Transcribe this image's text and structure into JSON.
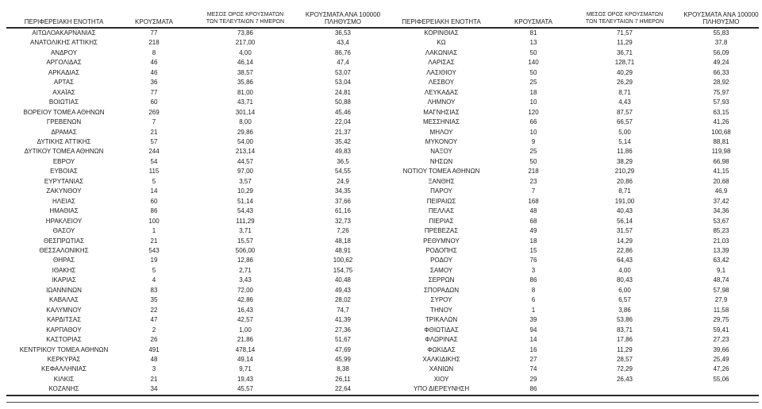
{
  "table": {
    "headers": {
      "region": "ΠΕΡΙΦΕΡΕΙΑΚΗ ΕΝΟΤΗΤΑ",
      "cases": "ΚΡΟΥΣΜΑΤΑ",
      "avg7_line1": "ΜΕΣΟΣ ΟΡΟΣ ΚΡΟΥΣΜΑΤΩΝ",
      "avg7_line2": "ΤΩΝ ΤΕΛΕΥΤΑΙΩΝ 7 ΗΜΕΡΩΝ",
      "per100k_line1": "ΚΡΟΥΣΜΑΤΑ ΑΝΑ 100000",
      "per100k_line2": "ΠΛΗΘΥΣΜΟ"
    },
    "rows_left": [
      {
        "region": "ΑΙΤΩΛΟΑΚΑΡΝΑΝΙΑΣ",
        "cases": "77",
        "avg7": "73,86",
        "per100k": "36,53"
      },
      {
        "region": "ΑΝΑΤΟΛΙΚΗΣ ΑΤΤΙΚΗΣ",
        "cases": "218",
        "avg7": "217,00",
        "per100k": "43,4"
      },
      {
        "region": "ΑΝΔΡΟΥ",
        "cases": "8",
        "avg7": "4,00",
        "per100k": "86,76"
      },
      {
        "region": "ΑΡΓΟΛΙΔΑΣ",
        "cases": "46",
        "avg7": "46,14",
        "per100k": "47,4"
      },
      {
        "region": "ΑΡΚΑΔΙΑΣ",
        "cases": "46",
        "avg7": "38,57",
        "per100k": "53,07"
      },
      {
        "region": "ΑΡΤΑΣ",
        "cases": "36",
        "avg7": "35,86",
        "per100k": "53,04"
      },
      {
        "region": "ΑΧΑΪΑΣ",
        "cases": "77",
        "avg7": "81,00",
        "per100k": "24,81"
      },
      {
        "region": "ΒΟΙΩΤΙΑΣ",
        "cases": "60",
        "avg7": "43,71",
        "per100k": "50,88"
      },
      {
        "region": "ΒΟΡΕΙΟΥ ΤΟΜΕΑ ΑΘΗΝΩΝ",
        "cases": "269",
        "avg7": "301,14",
        "per100k": "45,46"
      },
      {
        "region": "ΓΡΕΒΕΝΩΝ",
        "cases": "7",
        "avg7": "8,00",
        "per100k": "22,04"
      },
      {
        "region": "ΔΡΑΜΑΣ",
        "cases": "21",
        "avg7": "29,86",
        "per100k": "21,37"
      },
      {
        "region": "ΔΥΤΙΚΗΣ ΑΤΤΙΚΗΣ",
        "cases": "57",
        "avg7": "54,00",
        "per100k": "35,42"
      },
      {
        "region": "ΔΥΤΙΚΟΥ ΤΟΜΕΑ ΑΘΗΝΩΝ",
        "cases": "244",
        "avg7": "213,14",
        "per100k": "49,83"
      },
      {
        "region": "ΕΒΡΟΥ",
        "cases": "54",
        "avg7": "44,57",
        "per100k": "36,5"
      },
      {
        "region": "ΕΥΒΟΙΑΣ",
        "cases": "115",
        "avg7": "97,00",
        "per100k": "54,55"
      },
      {
        "region": "ΕΥΡΥΤΑΝΙΑΣ",
        "cases": "5",
        "avg7": "3,57",
        "per100k": "24,9"
      },
      {
        "region": "ΖΑΚΥΝΘΟΥ",
        "cases": "14",
        "avg7": "10,29",
        "per100k": "34,35"
      },
      {
        "region": "ΗΛΕΙΑΣ",
        "cases": "60",
        "avg7": "51,14",
        "per100k": "37,66"
      },
      {
        "region": "ΗΜΑΘΙΑΣ",
        "cases": "86",
        "avg7": "54,43",
        "per100k": "61,16"
      },
      {
        "region": "ΗΡΑΚΛΕΙΟΥ",
        "cases": "100",
        "avg7": "111,29",
        "per100k": "32,73"
      },
      {
        "region": "ΘΑΣΟΥ",
        "cases": "1",
        "avg7": "3,71",
        "per100k": "7,26"
      },
      {
        "region": "ΘΕΣΠΡΩΤΙΑΣ",
        "cases": "21",
        "avg7": "15,57",
        "per100k": "48,18"
      },
      {
        "region": "ΘΕΣΣΑΛΟΝΙΚΗΣ",
        "cases": "543",
        "avg7": "506,00",
        "per100k": "48,91"
      },
      {
        "region": "ΘΗΡΑΣ",
        "cases": "19",
        "avg7": "12,86",
        "per100k": "100,62"
      },
      {
        "region": "ΙΘΑΚΗΣ",
        "cases": "5",
        "avg7": "2,71",
        "per100k": "154,75"
      },
      {
        "region": "ΙΚΑΡΙΑΣ",
        "cases": "4",
        "avg7": "3,43",
        "per100k": "40,48"
      },
      {
        "region": "ΙΩΑΝΝΙΝΩΝ",
        "cases": "83",
        "avg7": "72,00",
        "per100k": "49,43"
      },
      {
        "region": "ΚΑΒΑΛΑΣ",
        "cases": "35",
        "avg7": "42,86",
        "per100k": "28,02"
      },
      {
        "region": "ΚΑΛΥΜΝΟΥ",
        "cases": "22",
        "avg7": "16,43",
        "per100k": "74,7"
      },
      {
        "region": "ΚΑΡΔΙΤΣΑΣ",
        "cases": "47",
        "avg7": "42,57",
        "per100k": "41,39"
      },
      {
        "region": "ΚΑΡΠΑΘΟΥ",
        "cases": "2",
        "avg7": "1,00",
        "per100k": "27,36"
      },
      {
        "region": "ΚΑΣΤΟΡΙΑΣ",
        "cases": "26",
        "avg7": "21,86",
        "per100k": "51,67"
      },
      {
        "region": "ΚΕΝΤΡΙΚΟΥ ΤΟΜΕΑ ΑΘΗΝΩΝ",
        "cases": "491",
        "avg7": "478,14",
        "per100k": "47,69"
      },
      {
        "region": "ΚΕΡΚΥΡΑΣ",
        "cases": "48",
        "avg7": "49,14",
        "per100k": "45,99"
      },
      {
        "region": "ΚΕΦΑΛΛΗΝΙΑΣ",
        "cases": "3",
        "avg7": "9,71",
        "per100k": "8,38"
      },
      {
        "region": "ΚΙΛΚΙΣ",
        "cases": "21",
        "avg7": "19,43",
        "per100k": "26,11"
      },
      {
        "region": "ΚΟΖΑΝΗΣ",
        "cases": "34",
        "avg7": "45,57",
        "per100k": "22,64"
      }
    ],
    "rows_right": [
      {
        "region": "ΚΟΡΙΝΘΙΑΣ",
        "cases": "81",
        "avg7": "71,57",
        "per100k": "55,83"
      },
      {
        "region": "ΚΩ",
        "cases": "13",
        "avg7": "11,29",
        "per100k": "37,8"
      },
      {
        "region": "ΛΑΚΩΝΙΑΣ",
        "cases": "50",
        "avg7": "36,71",
        "per100k": "56,09"
      },
      {
        "region": "ΛΑΡΙΣΑΣ",
        "cases": "140",
        "avg7": "128,71",
        "per100k": "49,24"
      },
      {
        "region": "ΛΑΣΙΘΙΟΥ",
        "cases": "50",
        "avg7": "40,29",
        "per100k": "66,33"
      },
      {
        "region": "ΛΕΣΒΟΥ",
        "cases": "25",
        "avg7": "26,29",
        "per100k": "28,92"
      },
      {
        "region": "ΛΕΥΚΑΔΑΣ",
        "cases": "18",
        "avg7": "8,71",
        "per100k": "75,97"
      },
      {
        "region": "ΛΗΜΝΟΥ",
        "cases": "10",
        "avg7": "4,43",
        "per100k": "57,93"
      },
      {
        "region": "ΜΑΓΝΗΣΙΑΣ",
        "cases": "120",
        "avg7": "87,57",
        "per100k": "63,15"
      },
      {
        "region": "ΜΕΣΣΗΝΙΑΣ",
        "cases": "66",
        "avg7": "66,57",
        "per100k": "41,26"
      },
      {
        "region": "ΜΗΛΟΥ",
        "cases": "10",
        "avg7": "5,00",
        "per100k": "100,68"
      },
      {
        "region": "ΜΥΚΟΝΟΥ",
        "cases": "9",
        "avg7": "5,14",
        "per100k": "88,81"
      },
      {
        "region": "ΝΑΞΟΥ",
        "cases": "25",
        "avg7": "11,86",
        "per100k": "119,98"
      },
      {
        "region": "ΝΗΣΩΝ",
        "cases": "50",
        "avg7": "38,29",
        "per100k": "66,98"
      },
      {
        "region": "ΝΟΤΙΟΥ ΤΟΜΕΑ ΑΘΗΝΩΝ",
        "cases": "218",
        "avg7": "210,29",
        "per100k": "41,15"
      },
      {
        "region": "ΞΑΝΘΗΣ",
        "cases": "23",
        "avg7": "20,86",
        "per100k": "20,68"
      },
      {
        "region": "ΠΑΡΟΥ",
        "cases": "7",
        "avg7": "8,71",
        "per100k": "46,9"
      },
      {
        "region": "ΠΕΙΡΑΙΩΣ",
        "cases": "168",
        "avg7": "191,00",
        "per100k": "37,42"
      },
      {
        "region": "ΠΕΛΛΑΣ",
        "cases": "48",
        "avg7": "40,43",
        "per100k": "34,36"
      },
      {
        "region": "ΠΙΕΡΙΑΣ",
        "cases": "68",
        "avg7": "56,14",
        "per100k": "53,67"
      },
      {
        "region": "ΠΡΕΒΕΖΑΣ",
        "cases": "49",
        "avg7": "31,57",
        "per100k": "85,23"
      },
      {
        "region": "ΡΕΘΥΜΝΟΥ",
        "cases": "18",
        "avg7": "14,29",
        "per100k": "21,03"
      },
      {
        "region": "ΡΟΔΟΠΗΣ",
        "cases": "15",
        "avg7": "22,86",
        "per100k": "13,39"
      },
      {
        "region": "ΡΟΔΟΥ",
        "cases": "76",
        "avg7": "64,43",
        "per100k": "63,42"
      },
      {
        "region": "ΣΑΜΟΥ",
        "cases": "3",
        "avg7": "4,00",
        "per100k": "9,1"
      },
      {
        "region": "ΣΕΡΡΩΝ",
        "cases": "86",
        "avg7": "80,43",
        "per100k": "48,74"
      },
      {
        "region": "ΣΠΟΡΑΔΩΝ",
        "cases": "8",
        "avg7": "6,00",
        "per100k": "57,98"
      },
      {
        "region": "ΣΥΡΟΥ",
        "cases": "6",
        "avg7": "6,57",
        "per100k": "27,9"
      },
      {
        "region": "ΤΗΝΟΥ",
        "cases": "1",
        "avg7": "3,86",
        "per100k": "11,58"
      },
      {
        "region": "ΤΡΙΚΑΛΩΝ",
        "cases": "39",
        "avg7": "53,86",
        "per100k": "29,75"
      },
      {
        "region": "ΦΘΙΩΤΙΔΑΣ",
        "cases": "94",
        "avg7": "83,71",
        "per100k": "59,41"
      },
      {
        "region": "ΦΛΩΡΙΝΑΣ",
        "cases": "14",
        "avg7": "17,86",
        "per100k": "27,23"
      },
      {
        "region": "ΦΩΚΙΔΑΣ",
        "cases": "16",
        "avg7": "11,29",
        "per100k": "39,66"
      },
      {
        "region": "ΧΑΛΚΙΔΙΚΗΣ",
        "cases": "27",
        "avg7": "28,57",
        "per100k": "25,49"
      },
      {
        "region": "ΧΑΝΙΩΝ",
        "cases": "74",
        "avg7": "72,29",
        "per100k": "47,26"
      },
      {
        "region": "ΧΙΟΥ",
        "cases": "29",
        "avg7": "26,43",
        "per100k": "55,06"
      },
      {
        "region": "ΥΠΟ ΔΙΕΡΕΥΝΗΣΗ",
        "cases": "86",
        "avg7": "",
        "per100k": ""
      }
    ]
  }
}
